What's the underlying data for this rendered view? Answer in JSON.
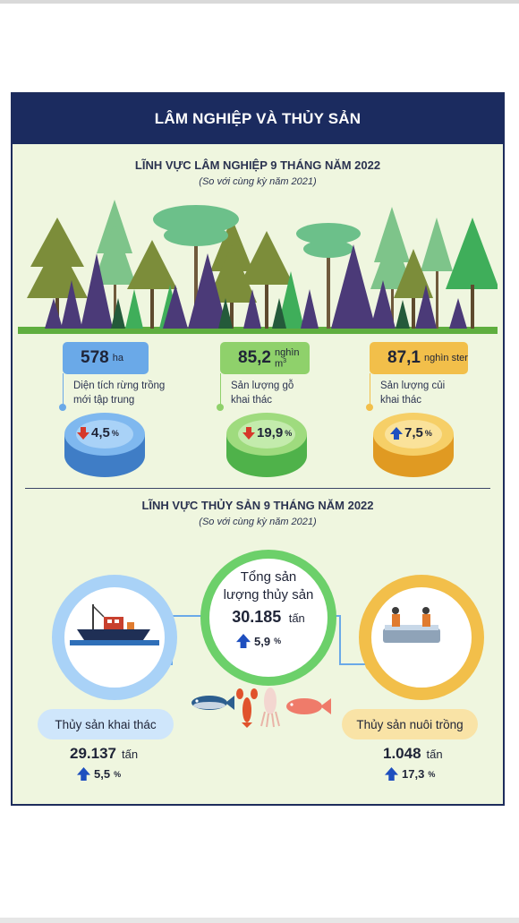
{
  "header": {
    "title": "LÂM NGHIỆP VÀ THỦY SẢN"
  },
  "forestry": {
    "title": "LĨNH VỰC LÂM NGHIỆP 9 THÁNG NĂM 2022",
    "subtitle": "(So với cùng kỳ năm 2021)",
    "items": [
      {
        "value": "578",
        "unit": "ha",
        "unit_sup": "",
        "desc_line1": "Diện tích rừng trồng",
        "desc_line2": "mới tập trung",
        "change": "4,5",
        "change_unit": "%",
        "direction": "down",
        "color": "#6aa9e8"
      },
      {
        "value": "85,2",
        "unit": "nghìn m",
        "unit_sup": "3",
        "desc_line1": "Sản lượng gỗ",
        "desc_line2": "khai thác",
        "change": "19,9",
        "change_unit": "%",
        "direction": "down",
        "color": "#8fd16b"
      },
      {
        "value": "87,1",
        "unit": "nghìn ster",
        "unit_sup": "",
        "desc_line1": "Sản lượng củi",
        "desc_line2": "khai thác",
        "change": "7,5",
        "change_unit": "%",
        "direction": "up",
        "color": "#f2bf4a"
      }
    ]
  },
  "fishery": {
    "title": "LĨNH VỰC THỦY SẢN 9 THÁNG NĂM 2022",
    "subtitle": "(So với cùng kỳ năm 2021)",
    "total": {
      "label_line1": "Tổng sản",
      "label_line2": "lượng thủy sản",
      "value": "30.185",
      "unit": "tấn",
      "change": "5,9",
      "change_unit": "%"
    },
    "catch": {
      "label": "Thủy sản khai thác",
      "value": "29.137",
      "unit": "tấn",
      "change": "5,5",
      "change_unit": "%"
    },
    "farm": {
      "label": "Thủy sản nuôi trồng",
      "value": "1.048",
      "unit": "tấn",
      "change": "17,3",
      "change_unit": "%"
    }
  },
  "icons": [
    "fishing-boat-icon",
    "fish-farmers-icon",
    "tuna-icon",
    "lobster-icon",
    "squid-icon",
    "red-snapper-icon",
    "arrow-up-icon",
    "arrow-down-icon"
  ]
}
